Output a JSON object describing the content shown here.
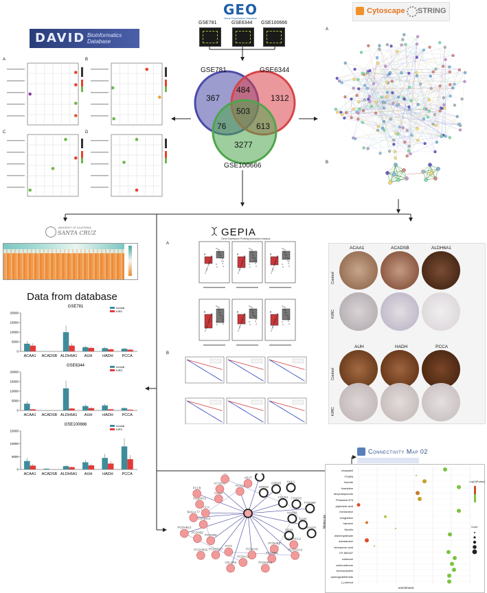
{
  "geo": {
    "logo": "GEO",
    "subtitle": "Gene Expression Omnibus",
    "datasets": [
      "GSE781",
      "GSE6344",
      "GSE100666"
    ]
  },
  "david": {
    "logo": "DAVID",
    "subtitle_1": "Bioinformatics",
    "subtitle_2": "Database"
  },
  "cytoscape_string": {
    "cytoscape": "Cytoscape",
    "string": "STRING"
  },
  "venn": {
    "sets": [
      "GSE781",
      "GSE6344",
      "GSE100666"
    ],
    "colors": {
      "GSE781": "#4b4aa8",
      "GSE6344": "#d9444a",
      "GSE100666": "#4ea54c"
    },
    "regions": {
      "only_781": "367",
      "only_6344": "1312",
      "only_100666": "3277",
      "781_6344": "484",
      "781_100666": "76",
      "6344_100666": "613",
      "all": "503"
    }
  },
  "dotplots": {
    "labels": [
      "A",
      "B",
      "C",
      "D"
    ]
  },
  "network_panels": {
    "labels": [
      "A",
      "B"
    ]
  },
  "ucsc": {
    "line1": "UNIVERSITY OF CALIFORNIA",
    "line2": "SANTA CRUZ"
  },
  "data_from_db": {
    "title": "Data from database"
  },
  "bar_charts": {
    "categories": [
      "ACAA1",
      "ACADSB",
      "ALDH6A1",
      "AUH",
      "HADH",
      "PCCA"
    ],
    "legend": [
      "normal",
      "KIRC"
    ],
    "colors": {
      "normal": "#3e8c9a",
      "KIRC": "#e23a3a"
    },
    "charts": [
      {
        "title": "GSE781",
        "yticks": [
          "0",
          "5000",
          "10000",
          "15000",
          "20000"
        ],
        "ymax": 20000,
        "normal": [
          4000,
          0,
          10000,
          2200,
          1700,
          1400
        ],
        "kirc": [
          3000,
          0,
          3000,
          1800,
          1100,
          900
        ]
      },
      {
        "title": "GSE6344",
        "yticks": [
          "0",
          "5000",
          "10000",
          "15000",
          "20000"
        ],
        "ymax": 20000,
        "normal": [
          3500,
          0,
          11500,
          2300,
          2600,
          1200
        ],
        "kirc": [
          600,
          0,
          1000,
          1200,
          600,
          400
        ]
      },
      {
        "title": "GSE100666",
        "yticks": [
          "0",
          "5000",
          "10000",
          "15000"
        ],
        "ymax": 15000,
        "normal": [
          3300,
          300,
          1300,
          2800,
          4500,
          9000
        ],
        "kirc": [
          1500,
          0,
          900,
          1600,
          2300,
          4000
        ]
      }
    ]
  },
  "gepia": {
    "title": "GEPIA",
    "subtitle": "Gene Expression Profiling Interactive Analysis",
    "panel_a": "A",
    "panel_b": "B"
  },
  "ihc": {
    "top_genes": [
      "ACAA1",
      "ACADSB",
      "ALDH6A1"
    ],
    "bottom_genes": [
      "AUH",
      "HADH",
      "PCCA"
    ],
    "rows": [
      "Control",
      "KIRC"
    ]
  },
  "cmap": {
    "logo": "Connectivity Map 02",
    "ylabel": "Molecule",
    "xlabel": "enrichment",
    "legend_title": "Log10(Pvalue)",
    "count_title": "Count",
    "molecules": [
      "verapamil",
      "TTNPB",
      "lisuride",
      "tizanidine",
      "dexpramipexole",
      "Prestwick-675",
      "pipemidic acid",
      "memantine",
      "irsogladine",
      "harmine",
      "flavolin",
      "dimenhydrinate",
      "dobutamine",
      "stenopexic acid",
      "CP-863187",
      "cortisone",
      "corticosterone",
      "bromocriptine",
      "aminoglutethimide",
      "(-)-eleriod"
    ]
  },
  "ppi": {
    "nodes": [
      "PCCA",
      "ALDH6A1",
      "PCCB",
      "HADH",
      "ACADSB",
      "AUH",
      "ACAA1",
      "ABAT",
      "CCR5",
      "GPR55",
      "GPR45",
      "SHC1",
      "CXCR4",
      "FOXO3",
      "TYROBP",
      "MAPK8",
      "CD40",
      "HAGH",
      "SOX5",
      "PCDHGA2",
      "PCDHGA3",
      "PCDHB3",
      "PCDHB5",
      "PCDHB10",
      "PCDHA6",
      "PCDHA2",
      "CELSR3",
      "FAT3",
      "PCDHGB7",
      "PCDHB16",
      "PCDHB8",
      "PCDHB2",
      "PCDHB13",
      "PCDHGC4",
      "B4GALT7"
    ]
  }
}
